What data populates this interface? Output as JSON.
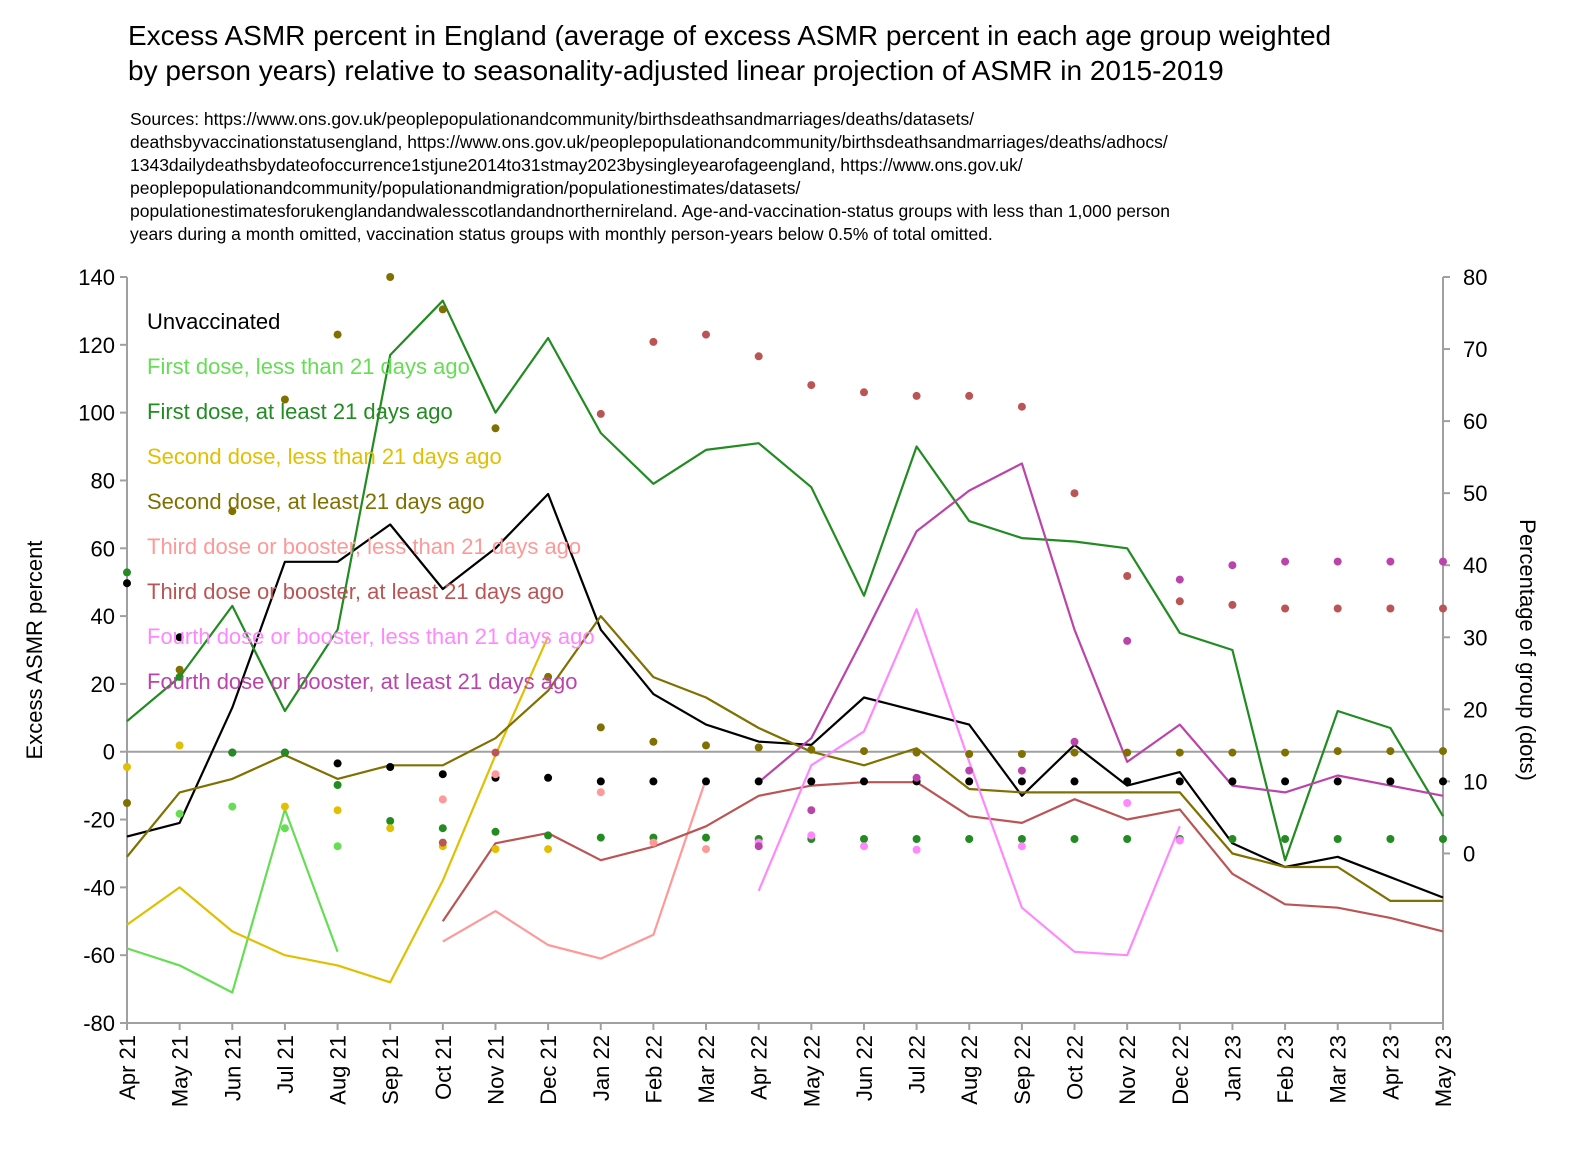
{
  "title_lines": [
    "Excess ASMR percent in England (average of excess ASMR percent in each age group weighted",
    "by person years) relative to seasonality-adjusted linear projection of ASMR in 2015-2019"
  ],
  "subtitle_lines": [
    "Sources: https://www.ons.gov.uk/peoplepopulationandcommunity/birthsdeathsandmarriages/deaths/datasets/",
    "deathsbyvaccinationstatusengland, https://www.ons.gov.uk/peoplepopulationandcommunity/birthsdeathsandmarriages/deaths/adhocs/",
    "1343dailydeathsbydateofoccurrence1stjune2014to31stmay2023bysingleyearofageengland, https://www.ons.gov.uk/",
    "peoplepopulationandcommunity/populationandmigration/populationestimates/datasets/",
    "populationestimatesforukenglandandwalesscotlandandnorthernireland. Age-and-vaccination-status groups with less than 1,000 person",
    "years during a month omitted, vaccination status groups with monthly person-years below 0.5% of total omitted."
  ],
  "chart_data": {
    "type": "line",
    "title": "Excess ASMR percent in England (average of excess ASMR percent in each age group weighted by person years) relative to seasonality-adjusted linear projection of ASMR in 2015-2019",
    "ylabel": "Excess ASMR percent",
    "y2label": "Percentage of group (dots)",
    "ylim": [
      -80,
      140
    ],
    "y2lim": [
      -23.53,
      80
    ],
    "yticks": [
      -80,
      -60,
      -40,
      -20,
      0,
      20,
      40,
      60,
      80,
      100,
      120,
      140
    ],
    "y2ticks": [
      0,
      10,
      20,
      30,
      40,
      50,
      60,
      70,
      80
    ],
    "categories": [
      "Apr 21",
      "May 21",
      "Jun 21",
      "Jul 21",
      "Aug 21",
      "Sep 21",
      "Oct 21",
      "Nov 21",
      "Dec 21",
      "Jan 22",
      "Feb 22",
      "Mar 22",
      "Apr 22",
      "May 22",
      "Jun 22",
      "Jul 22",
      "Aug 22",
      "Sep 22",
      "Oct 22",
      "Nov 22",
      "Dec 22",
      "Jan 23",
      "Feb 23",
      "Mar 23",
      "Apr 23",
      "May 23"
    ],
    "grid": false,
    "legend_position": "top-left",
    "series": [
      {
        "name": "Unvaccinated",
        "color": "#000000",
        "values": [
          -25,
          -21,
          13,
          56,
          56,
          67,
          48,
          60,
          76,
          36,
          17,
          8,
          3,
          2,
          16,
          12,
          8,
          -13,
          2,
          -10,
          -6,
          -27,
          -34,
          -31,
          -37,
          -43
        ],
        "dots": [
          37.5,
          30,
          14,
          14,
          12.5,
          12,
          11,
          10.5,
          10.5,
          10,
          10,
          10,
          10,
          10,
          10,
          10,
          10,
          10,
          10,
          10,
          10,
          10,
          10,
          10,
          10,
          10
        ]
      },
      {
        "name": "First dose, less than 21 days ago",
        "color": "#66dd55",
        "values": [
          -58,
          -63,
          -71,
          -17,
          -59,
          null,
          null,
          null,
          null,
          null,
          null,
          null,
          null,
          null,
          null,
          null,
          null,
          null,
          null,
          null,
          null,
          null,
          null,
          null,
          null,
          null
        ],
        "dots": [
          null,
          5.5,
          6.5,
          3.5,
          1,
          null,
          null,
          null,
          null,
          null,
          null,
          null,
          null,
          null,
          null,
          null,
          null,
          null,
          null,
          null,
          null,
          null,
          null,
          null,
          null,
          null
        ]
      },
      {
        "name": "First dose, at least 21 days ago",
        "color": "#228b22",
        "values": [
          9,
          22,
          43,
          12,
          36,
          117,
          133,
          100,
          122,
          94,
          79,
          89,
          91,
          78,
          46,
          90,
          68,
          63,
          62,
          60,
          35,
          30,
          -32,
          12,
          7,
          -19
        ],
        "dots": [
          39,
          24.5,
          14,
          14,
          9.5,
          4.5,
          3.5,
          3,
          2.5,
          2.2,
          2.2,
          2.2,
          2,
          2,
          2,
          2,
          2,
          2,
          2,
          2,
          2,
          2,
          2,
          2,
          2,
          2
        ]
      },
      {
        "name": "Second dose, less than 21 days ago",
        "color": "#e0c000",
        "values": [
          -51,
          -40,
          -53,
          -60,
          -63,
          -68,
          -38,
          -1,
          34,
          null,
          null,
          null,
          null,
          null,
          null,
          null,
          null,
          null,
          null,
          null,
          null,
          null,
          null,
          null,
          null,
          null
        ],
        "dots": [
          12,
          15,
          null,
          6.5,
          6,
          3.5,
          1,
          0.6,
          0.6,
          null,
          null,
          null,
          null,
          null,
          null,
          null,
          null,
          null,
          null,
          null,
          null,
          null,
          null,
          null,
          null,
          null
        ]
      },
      {
        "name": "Second dose, at least 21 days ago",
        "color": "#807000",
        "values": [
          -31,
          -12,
          -8,
          -1,
          -8,
          -4,
          -4,
          4,
          18,
          40,
          22,
          16,
          7,
          0,
          -4,
          1,
          -11,
          -12,
          -12,
          -12,
          -12,
          -30,
          -34,
          -34,
          -44,
          -44
        ],
        "dots": [
          7,
          25.5,
          47.5,
          63,
          72,
          80,
          75.5,
          59,
          24.5,
          17.5,
          15.5,
          15,
          14.7,
          14.4,
          14.2,
          14,
          13.8,
          13.8,
          14,
          14,
          14,
          14,
          14,
          14.2,
          14.2,
          14.2
        ]
      },
      {
        "name": "Third dose or booster, less than 21 days ago",
        "color": "#ff9999",
        "values": [
          null,
          null,
          null,
          null,
          null,
          null,
          -56,
          -47,
          -57,
          -61,
          -54,
          -8,
          null,
          null,
          null,
          null,
          null,
          null,
          null,
          null,
          null,
          null,
          null,
          null,
          null,
          null
        ],
        "dots": [
          null,
          null,
          null,
          null,
          null,
          null,
          7.5,
          11,
          null,
          8.5,
          1.5,
          0.6,
          null,
          null,
          null,
          null,
          null,
          null,
          null,
          null,
          null,
          null,
          null,
          null,
          null,
          null
        ]
      },
      {
        "name": "Third dose or booster, at least 21 days ago",
        "color": "#bb5555",
        "values": [
          null,
          null,
          null,
          null,
          null,
          null,
          -50,
          -27,
          -24,
          -32,
          -28,
          -22,
          -13,
          -10,
          -9,
          -9,
          -19,
          -21,
          -14,
          -20,
          -17,
          -36,
          -45,
          -46,
          -49,
          -53
        ],
        "dots": [
          null,
          null,
          null,
          null,
          null,
          null,
          1.5,
          14,
          null,
          61,
          71,
          72,
          69,
          65,
          64,
          63.5,
          63.5,
          62,
          50,
          38.5,
          35,
          34.5,
          34,
          34,
          34,
          34
        ]
      },
      {
        "name": "Fourth dose or booster, less than 21 days ago",
        "color": "#ff88ff",
        "values": [
          null,
          null,
          null,
          null,
          null,
          null,
          null,
          null,
          null,
          null,
          null,
          null,
          -41,
          -4,
          6,
          42,
          -3,
          -46,
          -59,
          -60,
          -22,
          null,
          null,
          null,
          null,
          null
        ],
        "dots": [
          null,
          null,
          null,
          null,
          null,
          null,
          null,
          null,
          null,
          null,
          null,
          null,
          1.5,
          2.5,
          1,
          0.5,
          null,
          1,
          null,
          7,
          1.8,
          null,
          null,
          null,
          null,
          null
        ]
      },
      {
        "name": "Fourth dose or booster, at least 21 days ago",
        "color": "#bb44aa",
        "values": [
          null,
          null,
          null,
          null,
          null,
          null,
          null,
          null,
          null,
          null,
          null,
          null,
          -9,
          4,
          34,
          65,
          77,
          85,
          36,
          -3,
          8,
          -10,
          -12,
          -7,
          -10,
          -13
        ],
        "dots": [
          null,
          null,
          null,
          null,
          null,
          null,
          null,
          null,
          null,
          null,
          null,
          null,
          1,
          6,
          null,
          10.5,
          11.5,
          11.5,
          15.5,
          29.5,
          38,
          40,
          40.5,
          40.5,
          40.5,
          40.5
        ]
      }
    ]
  }
}
